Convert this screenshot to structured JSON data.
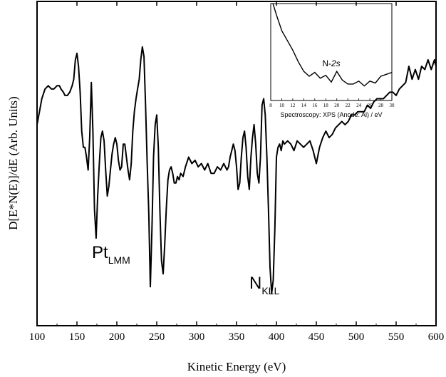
{
  "chart_data": [
    {
      "type": "line",
      "xlabel": "Kinetic Energy (eV)",
      "ylabel": "D[E*N(E)]/dE (Arb. Units)",
      "xlim": [
        100,
        600
      ],
      "ylim": [
        0,
        100
      ],
      "y_ticks_shown": false,
      "grid": false,
      "legend": "none",
      "x_ticks": [
        100,
        150,
        200,
        250,
        300,
        350,
        400,
        450,
        500,
        550,
        600
      ],
      "line_color": "#000000",
      "annotations": [
        {
          "label": "Pt",
          "subscript": "LMM",
          "x": 168,
          "y": 19
        },
        {
          "label": "N",
          "subscript": "KLL",
          "x": 386,
          "y": 10
        }
      ],
      "series": [
        {
          "x": [
            100,
            103,
            106,
            110,
            114,
            118,
            121,
            125,
            128,
            130,
            133,
            135,
            138,
            141,
            144,
            146,
            148,
            150,
            152,
            154,
            156,
            158,
            160,
            162,
            164,
            166,
            168,
            170,
            172,
            174,
            176,
            178,
            180,
            182,
            184,
            186,
            188,
            190,
            192,
            194,
            196,
            198,
            200,
            202,
            204,
            206,
            208,
            210,
            212,
            214,
            216,
            218,
            220,
            222,
            224,
            226,
            228,
            230,
            232,
            234,
            236,
            238,
            240,
            242,
            244,
            246,
            248,
            250,
            252,
            254,
            256,
            258,
            260,
            262,
            264,
            266,
            268,
            270,
            272,
            274,
            276,
            278,
            280,
            283,
            286,
            290,
            294,
            298,
            302,
            306,
            310,
            314,
            318,
            322,
            326,
            330,
            334,
            338,
            340,
            342,
            344,
            346,
            348,
            350,
            352,
            354,
            356,
            358,
            360,
            362,
            364,
            366,
            368,
            370,
            372,
            374,
            376,
            378,
            380,
            382,
            384,
            386,
            388,
            390,
            392,
            394,
            396,
            398,
            400,
            402,
            404,
            406,
            408,
            410,
            414,
            418,
            422,
            426,
            430,
            434,
            438,
            442,
            446,
            450,
            454,
            458,
            462,
            466,
            470,
            474,
            478,
            482,
            486,
            490,
            494,
            498,
            502,
            506,
            510,
            514,
            518,
            522,
            526,
            530,
            534,
            538,
            542,
            546,
            550,
            554,
            558,
            562,
            566,
            570,
            574,
            578,
            582,
            586,
            590,
            594,
            598,
            600
          ],
          "y": [
            62,
            66,
            70,
            73,
            74,
            73,
            73,
            74,
            74,
            73,
            72,
            71,
            71,
            72,
            74,
            76,
            82,
            84,
            80,
            72,
            60,
            55,
            55,
            52,
            48,
            58,
            75,
            60,
            36,
            27,
            40,
            50,
            58,
            60,
            57,
            48,
            40,
            43,
            48,
            53,
            56,
            58,
            56,
            51,
            48,
            49,
            56,
            56,
            52,
            48,
            45,
            50,
            60,
            66,
            70,
            73,
            76,
            82,
            86,
            83,
            68,
            50,
            35,
            12,
            30,
            52,
            62,
            65,
            55,
            35,
            20,
            16,
            25,
            36,
            45,
            48,
            49,
            47,
            44,
            44,
            46,
            45,
            47,
            46,
            49,
            52,
            50,
            51,
            49,
            50,
            48,
            50,
            47,
            47,
            49,
            48,
            50,
            48,
            49,
            52,
            54,
            56,
            54,
            49,
            42,
            44,
            52,
            58,
            60,
            55,
            46,
            42,
            52,
            58,
            62,
            56,
            47,
            44,
            52,
            68,
            70,
            65,
            52,
            36,
            18,
            10,
            14,
            30,
            52,
            55,
            56,
            54,
            57,
            56,
            57,
            56,
            54,
            57,
            56,
            55,
            56,
            57,
            54,
            50,
            55,
            58,
            60,
            58,
            59,
            61,
            62,
            63,
            62,
            63,
            65,
            65,
            66,
            66,
            66,
            68,
            67,
            69,
            70,
            70,
            70,
            71,
            72,
            72,
            71,
            73,
            74,
            75,
            80,
            76,
            79,
            76,
            80,
            79,
            82,
            79,
            82,
            80
          ]
        }
      ]
    },
    {
      "type": "line",
      "title": "Spectroscopy: XPS (Anode: Al) / eV",
      "xlim": [
        8,
        30
      ],
      "ylim": [
        0,
        100
      ],
      "x_ticks": [
        8,
        10,
        12,
        14,
        16,
        18,
        20,
        22,
        24,
        26,
        28,
        30
      ],
      "annotations": [
        {
          "label": "N-",
          "italic_label": "2s",
          "x": 19,
          "y": 35
        }
      ],
      "series": [
        {
          "x": [
            8.4,
            9,
            10,
            11,
            12,
            13,
            14,
            15,
            16,
            17,
            18,
            19,
            20,
            21,
            22,
            23,
            24,
            25,
            26,
            27,
            28,
            29,
            30
          ],
          "y": [
            100,
            89,
            72,
            62,
            52,
            40,
            30,
            25,
            29,
            23,
            26,
            19,
            30,
            21,
            17,
            17,
            20,
            15,
            20,
            18,
            25,
            27,
            29
          ]
        }
      ]
    }
  ]
}
